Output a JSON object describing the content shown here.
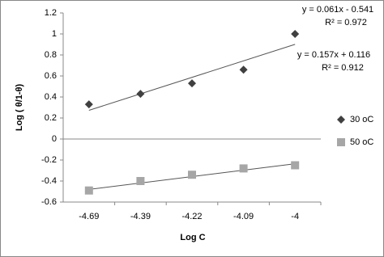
{
  "chart_data": {
    "type": "scatter",
    "x_label": "Log C",
    "y_label": "Log ( θ/1-θ)",
    "categories": [
      "-4.69",
      "-4.39",
      "-4.22",
      "-4.09",
      "-4"
    ],
    "series": [
      {
        "name": "30 oC",
        "color": "#404040",
        "marker": "diamond",
        "values": [
          0.33,
          0.43,
          0.53,
          0.66,
          1.0
        ],
        "trendline": {
          "slope": 0.157,
          "intercept": 0.116,
          "equation": "y = 0.157x + 0.116",
          "r2": "R² = 0.912"
        }
      },
      {
        "name": "50 oC",
        "color": "#a6a6a6",
        "marker": "square",
        "values": [
          -0.49,
          -0.4,
          -0.34,
          -0.28,
          -0.25
        ],
        "trendline": {
          "slope": 0.061,
          "intercept": -0.541,
          "equation": "y = 0.061x - 0.541",
          "r2": "R² = 0.972"
        }
      }
    ],
    "ylim": [
      -0.6,
      1.2
    ],
    "yticks": [
      -0.6,
      -0.4,
      -0.2,
      0,
      0.2,
      0.4,
      0.6,
      0.8,
      1,
      1.2
    ],
    "grid": false,
    "legend": "right"
  }
}
